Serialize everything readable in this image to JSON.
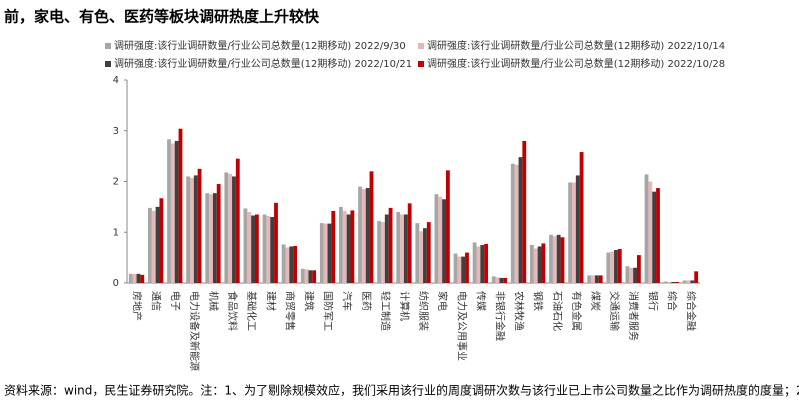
{
  "chart_data": {
    "type": "bar",
    "title": "前，家电、有色、医药等板块调研热度上升较快",
    "source": "资料来源：wind，民生证券研究院。注：1、为了剔除规模效应，我们采用该行业的周度调研次数与该行业已上市公司数量之比作为调研热度的度量；2",
    "categories": [
      "房地产",
      "通信",
      "电子",
      "电力设备及新能源",
      "机械",
      "食品饮料",
      "基础化工",
      "建材",
      "商贸零售",
      "建筑",
      "国防军工",
      "汽车",
      "医药",
      "轻工制造",
      "计算机",
      "纺织服装",
      "家电",
      "电力及公用事业",
      "传媒",
      "非银行金融",
      "农林牧渔",
      "钢铁",
      "石油石化",
      "有色金属",
      "煤炭",
      "交通运输",
      "消费者服务",
      "银行",
      "综合",
      "综合金融"
    ],
    "series": [
      {
        "name": "调研强度:该行业调研数量/行业公司总数量(12期移动) 2022/9/30",
        "color": "#a6a6a6",
        "values": [
          0.18,
          1.48,
          2.83,
          2.1,
          1.77,
          2.18,
          1.47,
          1.35,
          0.76,
          0.28,
          1.18,
          1.5,
          1.9,
          1.22,
          1.4,
          1.18,
          1.75,
          0.58,
          0.8,
          0.13,
          2.35,
          0.75,
          0.95,
          1.98,
          0.15,
          0.6,
          0.33,
          2.14,
          0.03,
          0.05
        ]
      },
      {
        "name": "调研强度:该行业调研数量/行业公司总数量(12期移动) 2022/10/14",
        "color": "#e6b8b7",
        "values": [
          0.18,
          1.42,
          2.75,
          2.07,
          1.75,
          2.15,
          1.4,
          1.32,
          0.7,
          0.27,
          1.17,
          1.42,
          1.85,
          1.2,
          1.35,
          1.02,
          1.7,
          0.52,
          0.72,
          0.11,
          2.33,
          0.68,
          0.92,
          1.98,
          0.15,
          0.62,
          0.3,
          2.0,
          0.02,
          0.05
        ]
      },
      {
        "name": "调研强度:该行业调研数量/行业公司总数量(12期移动) 2022/10/21",
        "color": "#404040",
        "values": [
          0.18,
          1.5,
          2.8,
          2.12,
          1.77,
          2.1,
          1.33,
          1.3,
          0.72,
          0.25,
          1.17,
          1.35,
          1.87,
          1.35,
          1.35,
          1.08,
          1.65,
          0.52,
          0.75,
          0.1,
          2.48,
          0.72,
          0.95,
          2.12,
          0.15,
          0.65,
          0.3,
          1.8,
          0.02,
          0.05
        ]
      },
      {
        "name": "调研强度:该行业调研数量/行业公司总数量(12期移动) 2022/10/28",
        "color": "#c00000",
        "values": [
          0.16,
          1.67,
          3.04,
          2.25,
          1.95,
          2.45,
          1.35,
          1.58,
          0.73,
          0.25,
          1.42,
          1.43,
          2.2,
          1.48,
          1.57,
          1.2,
          2.22,
          0.6,
          0.77,
          0.1,
          2.8,
          0.78,
          0.9,
          2.58,
          0.15,
          0.67,
          0.55,
          1.87,
          0.02,
          0.23
        ]
      }
    ],
    "ylim": [
      0,
      4
    ],
    "yticks": [
      0,
      1,
      2,
      3,
      4
    ]
  }
}
